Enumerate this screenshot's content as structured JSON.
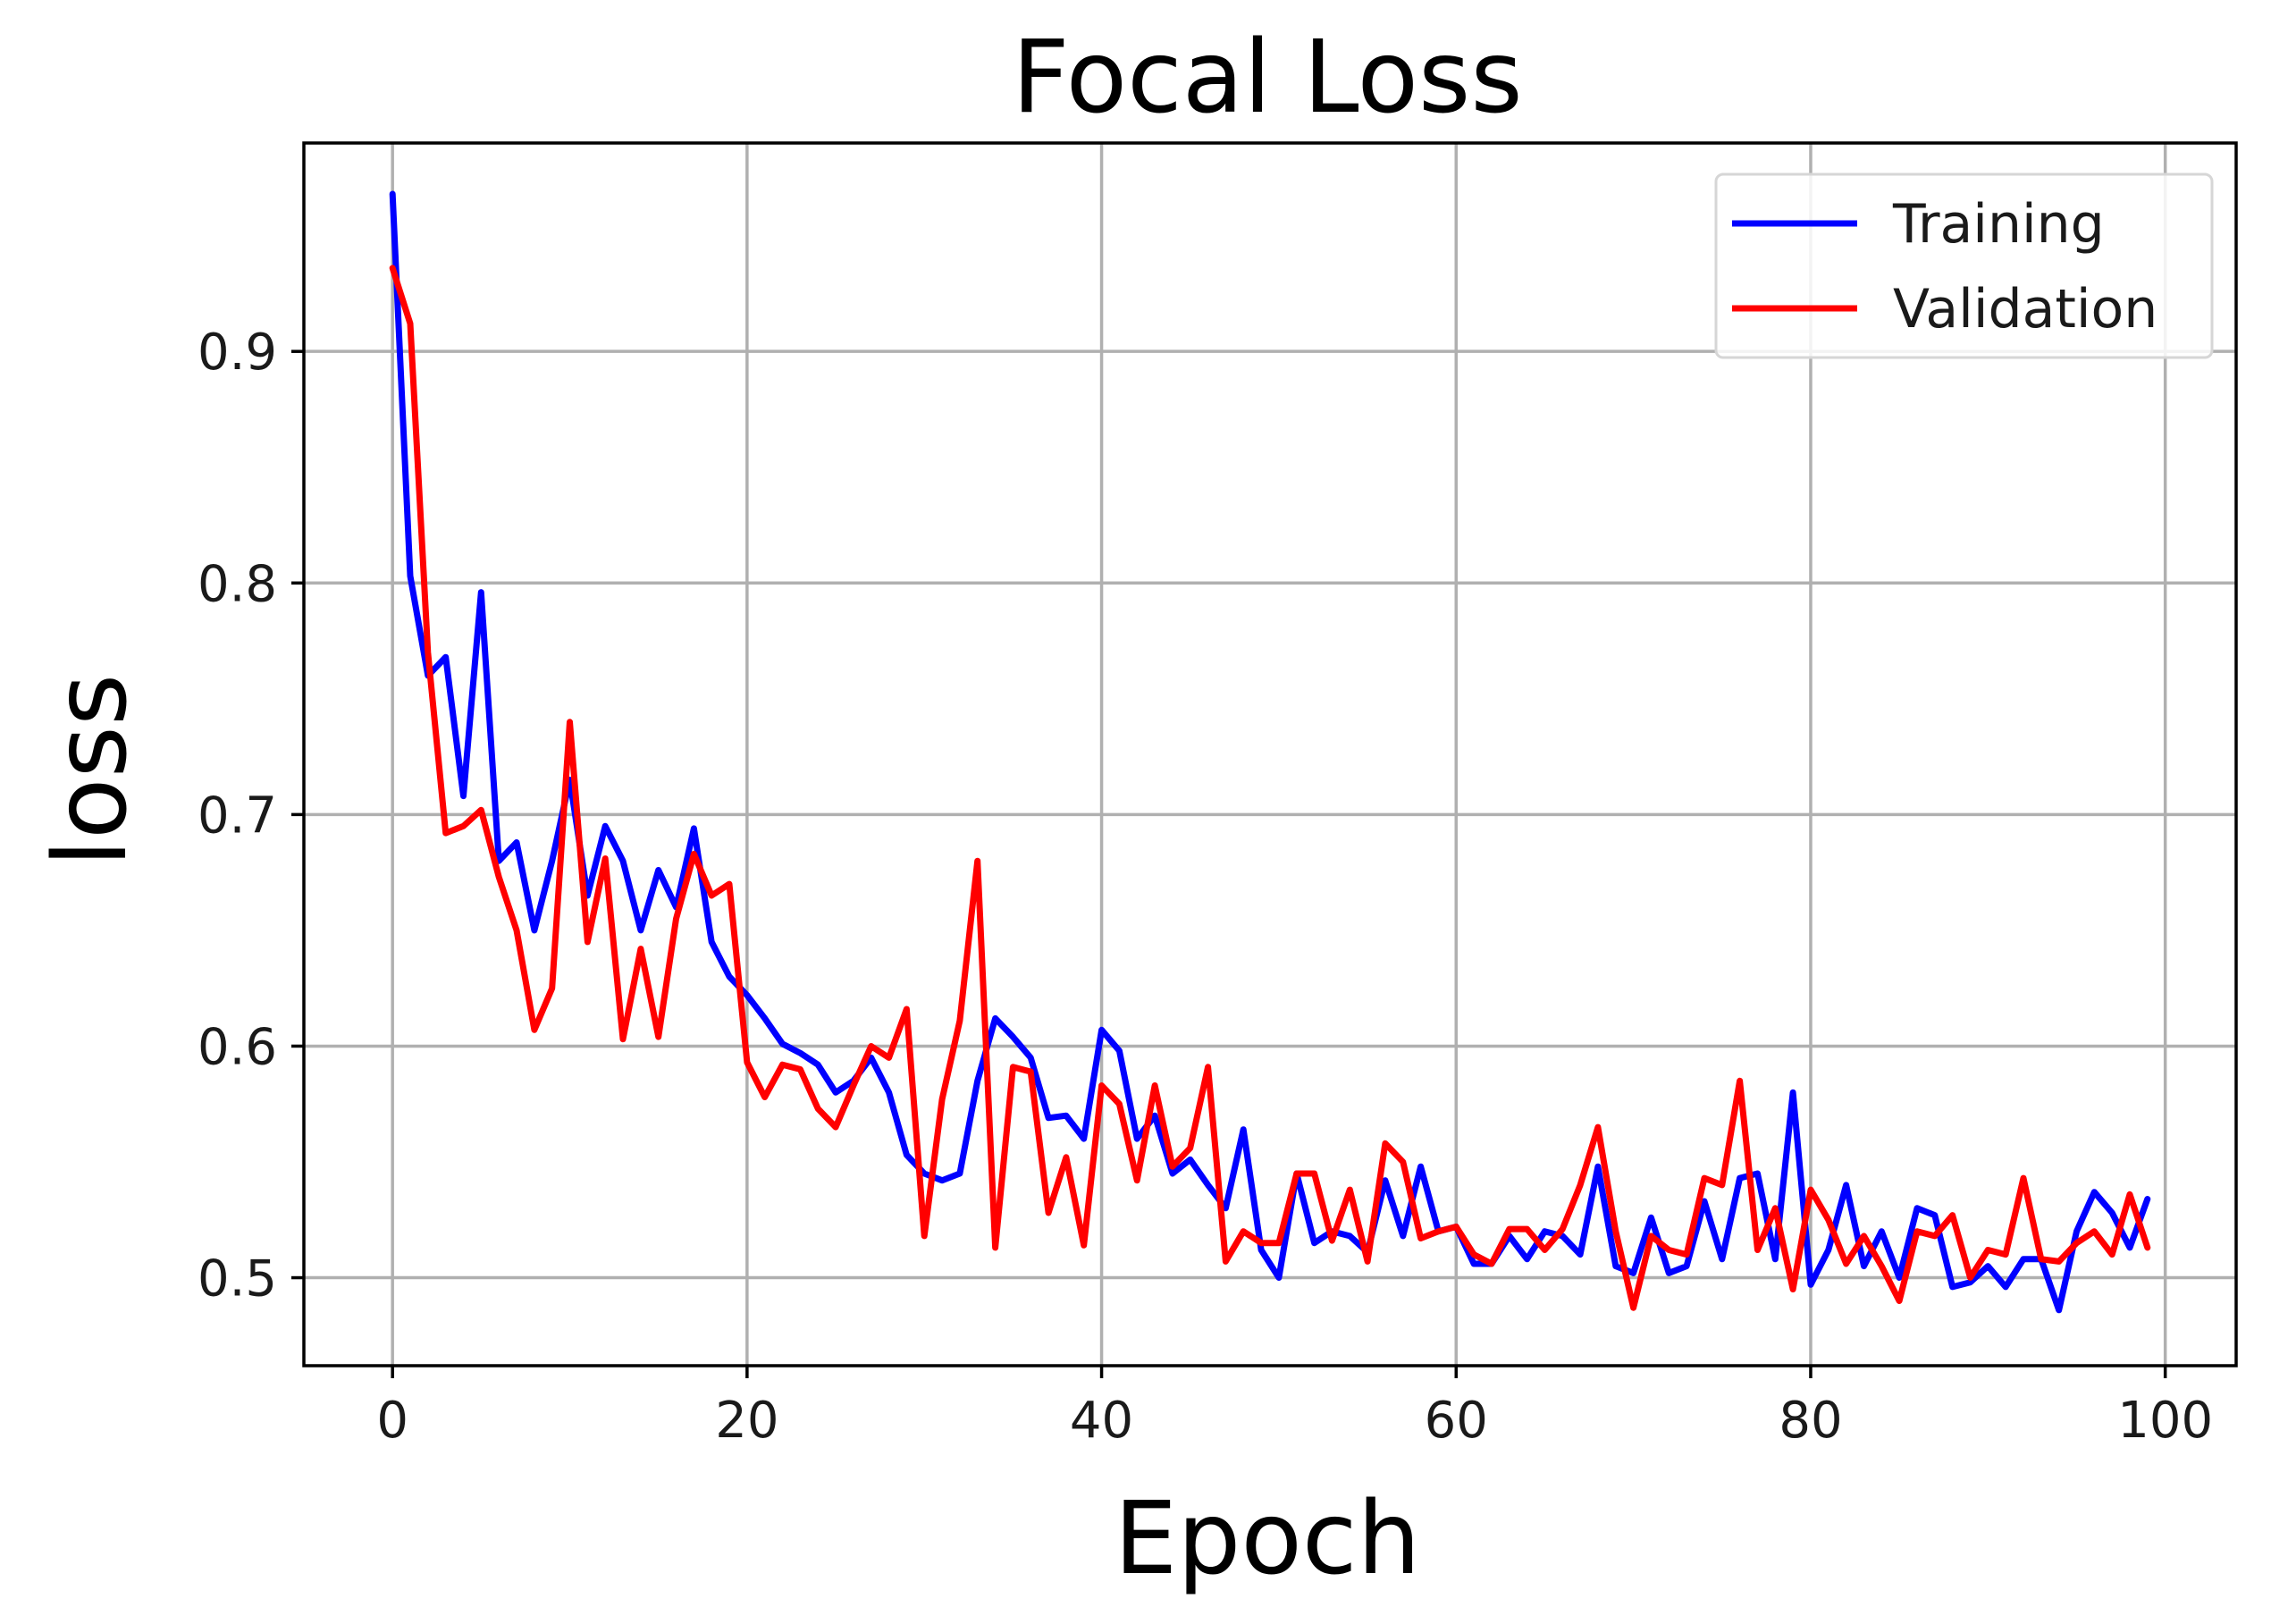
{
  "chart_data": {
    "type": "line",
    "title": "Focal Loss",
    "xlabel": "Epoch",
    "ylabel": "loss",
    "xlim": [
      -5,
      104
    ],
    "ylim": [
      0.462,
      0.99
    ],
    "x_ticks": [
      0,
      20,
      40,
      60,
      80,
      100
    ],
    "y_ticks": [
      0.5,
      0.6,
      0.7,
      0.8,
      0.9
    ],
    "x_tick_labels": [
      "0",
      "20",
      "40",
      "60",
      "80",
      "100"
    ],
    "y_tick_labels": [
      "0.5",
      "0.6",
      "0.7",
      "0.8",
      "0.9"
    ],
    "grid": true,
    "legend_position": "top-right",
    "x": [
      0,
      1,
      2,
      3,
      4,
      5,
      6,
      7,
      8,
      9,
      10,
      11,
      12,
      13,
      14,
      15,
      16,
      17,
      18,
      19,
      20,
      21,
      22,
      23,
      24,
      25,
      26,
      27,
      28,
      29,
      30,
      31,
      32,
      33,
      34,
      35,
      36,
      37,
      38,
      39,
      40,
      41,
      42,
      43,
      44,
      45,
      46,
      47,
      48,
      49,
      50,
      51,
      52,
      53,
      54,
      55,
      56,
      57,
      58,
      59,
      60,
      61,
      62,
      63,
      64,
      65,
      66,
      67,
      68,
      69,
      70,
      71,
      72,
      73,
      74,
      75,
      76,
      77,
      78,
      79,
      80,
      81,
      82,
      83,
      84,
      85,
      86,
      87,
      88,
      89,
      90,
      91,
      92,
      93,
      94,
      95,
      96,
      97,
      98,
      99
    ],
    "series": [
      {
        "name": "Training",
        "color": "#0000ff",
        "values": [
          0.968,
          0.803,
          0.76,
          0.768,
          0.708,
          0.796,
          0.68,
          0.688,
          0.65,
          0.68,
          0.715,
          0.665,
          0.695,
          0.68,
          0.65,
          0.676,
          0.66,
          0.694,
          0.645,
          0.63,
          0.622,
          0.612,
          0.601,
          0.597,
          0.592,
          0.58,
          0.585,
          0.595,
          0.58,
          0.553,
          0.545,
          0.542,
          0.545,
          0.585,
          0.612,
          0.604,
          0.595,
          0.569,
          0.57,
          0.56,
          0.607,
          0.598,
          0.56,
          0.57,
          0.545,
          0.551,
          0.54,
          0.53,
          0.564,
          0.512,
          0.5,
          0.545,
          0.515,
          0.52,
          0.518,
          0.511,
          0.542,
          0.518,
          0.548,
          0.52,
          0.522,
          0.506,
          0.506,
          0.518,
          0.508,
          0.52,
          0.518,
          0.51,
          0.548,
          0.505,
          0.502,
          0.526,
          0.502,
          0.505,
          0.533,
          0.508,
          0.543,
          0.545,
          0.508,
          0.58,
          0.497,
          0.512,
          0.54,
          0.505,
          0.52,
          0.5,
          0.53,
          0.527,
          0.496,
          0.498,
          0.505,
          0.496,
          0.508,
          0.508,
          0.486,
          0.52,
          0.537,
          0.528,
          0.513,
          0.534
        ]
      },
      {
        "name": "Validation",
        "color": "#ff0000",
        "values": [
          0.936,
          0.912,
          0.77,
          0.692,
          0.695,
          0.702,
          0.673,
          0.65,
          0.607,
          0.625,
          0.74,
          0.645,
          0.681,
          0.603,
          0.642,
          0.604,
          0.655,
          0.683,
          0.665,
          0.67,
          0.593,
          0.578,
          0.592,
          0.59,
          0.573,
          0.565,
          0.583,
          0.6,
          0.595,
          0.616,
          0.518,
          0.577,
          0.611,
          0.68,
          0.513,
          0.591,
          0.589,
          0.528,
          0.552,
          0.514,
          0.583,
          0.575,
          0.542,
          0.583,
          0.548,
          0.556,
          0.591,
          0.507,
          0.52,
          0.515,
          0.515,
          0.545,
          0.545,
          0.516,
          0.538,
          0.507,
          0.558,
          0.55,
          0.517,
          0.52,
          0.522,
          0.51,
          0.506,
          0.521,
          0.521,
          0.512,
          0.521,
          0.54,
          0.565,
          0.52,
          0.487,
          0.518,
          0.512,
          0.51,
          0.543,
          0.54,
          0.585,
          0.512,
          0.53,
          0.495,
          0.538,
          0.525,
          0.506,
          0.518,
          0.505,
          0.49,
          0.52,
          0.518,
          0.527,
          0.5,
          0.512,
          0.51,
          0.543,
          0.508,
          0.507,
          0.515,
          0.52,
          0.51,
          0.536,
          0.513
        ]
      }
    ]
  }
}
